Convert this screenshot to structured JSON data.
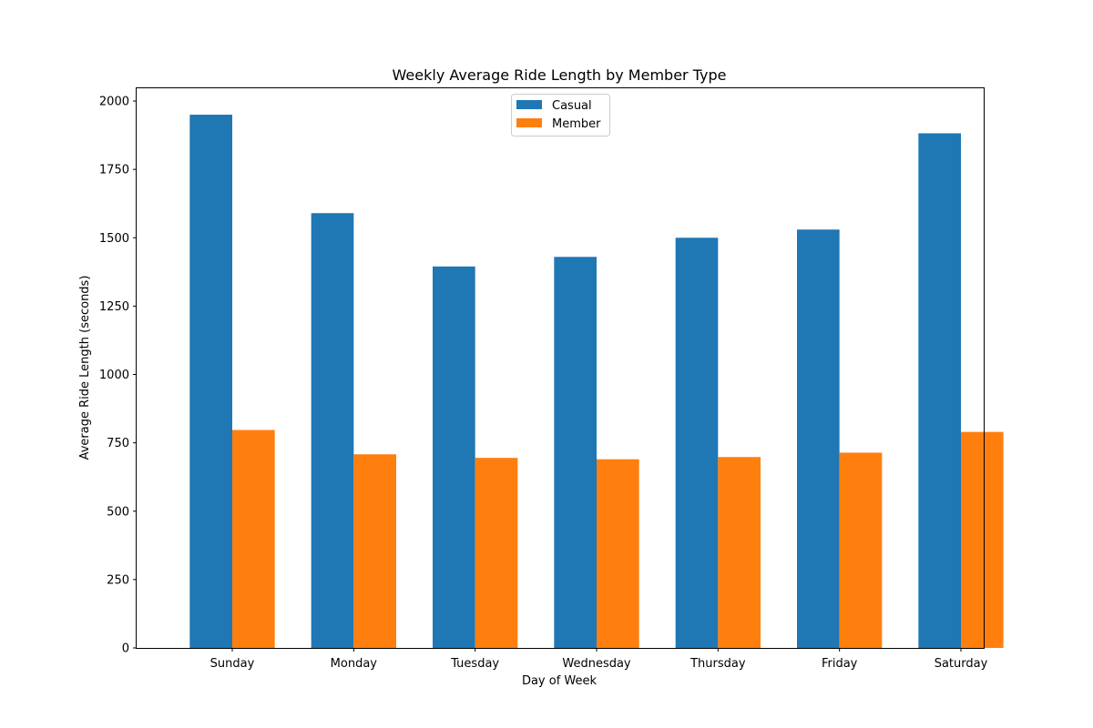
{
  "chart_data": {
    "type": "bar",
    "title": "Weekly Average Ride Length by Member Type",
    "xlabel": "Day of Week",
    "ylabel": "Average Ride Length (seconds)",
    "categories": [
      "Sunday",
      "Monday",
      "Tuesday",
      "Wednesday",
      "Thursday",
      "Friday",
      "Saturday"
    ],
    "series": [
      {
        "name": "Casual",
        "color": "#1f77b4",
        "values": [
          1950,
          1590,
          1395,
          1430,
          1500,
          1530,
          1882
        ]
      },
      {
        "name": "Member",
        "color": "#ff7f0e",
        "values": [
          797,
          708,
          695,
          690,
          698,
          714,
          790
        ]
      }
    ],
    "ylim": [
      0,
      2050
    ],
    "yticks": [
      0,
      250,
      500,
      750,
      1000,
      1250,
      1500,
      1750,
      2000
    ],
    "grid": false,
    "legend_position": "top-center"
  }
}
